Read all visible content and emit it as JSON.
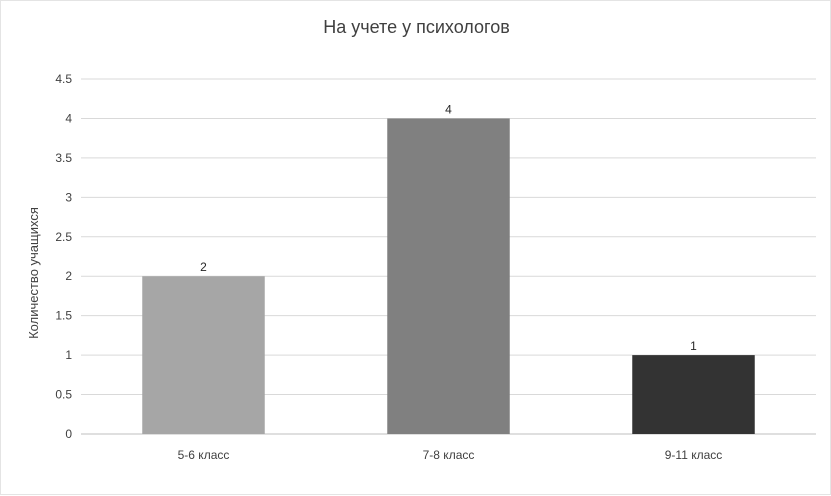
{
  "chart_data": {
    "type": "bar",
    "title": "На учете у психологов",
    "xlabel": "",
    "ylabel": "Количество учащихся",
    "categories": [
      "5-6 класс",
      "7-8 класс",
      "9-11 класс"
    ],
    "values": [
      2,
      4,
      1
    ],
    "ylim": [
      0,
      4.5
    ],
    "yticks": [
      0,
      0.5,
      1,
      1.5,
      2,
      2.5,
      3,
      3.5,
      4,
      4.5
    ],
    "bar_colors": [
      "#a6a6a6",
      "#808080",
      "#333333"
    ],
    "grid": true,
    "legend": "none",
    "data_labels": true
  }
}
